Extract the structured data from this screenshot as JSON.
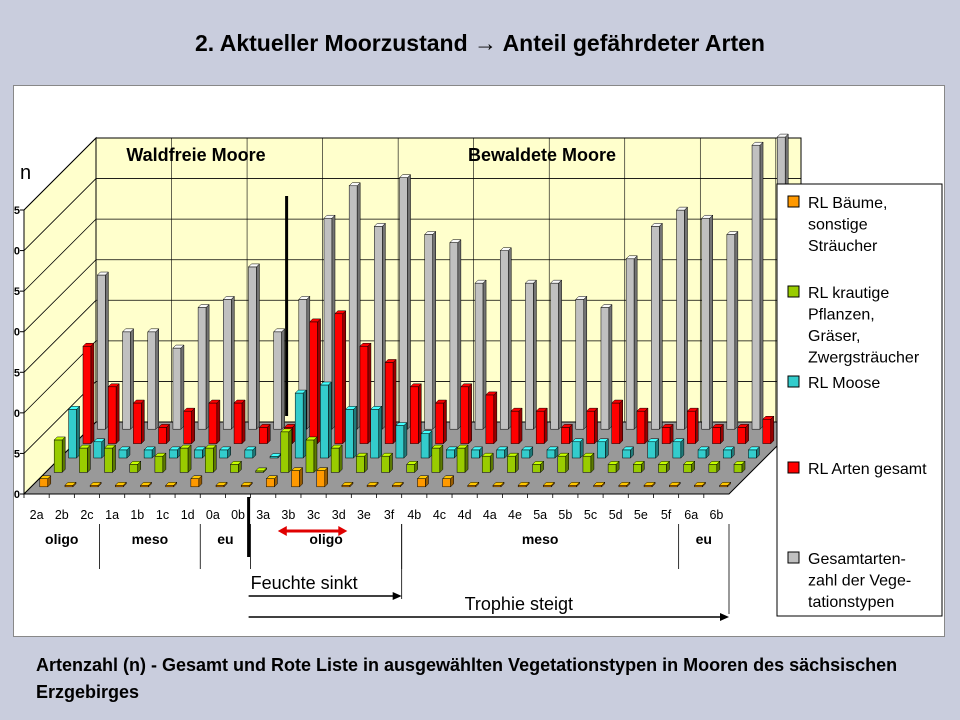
{
  "slide_title": "2. Aktueller Moorzustand → Anteil gefährdeter Arten",
  "caption": "Artenzahl (n) - Gesamt und Rote Liste in ausgewählten Vegetationstypen in Mooren des sächsischen Erzgebirges",
  "colors": {
    "rl_trees": "#ff9900",
    "rl_herbs": "#99cc00",
    "rl_mosses": "#33cccc",
    "rl_total": "#ff0000",
    "total": "#c0c0c0",
    "wall": "#ffffcc",
    "arrow_red": "#e00000"
  },
  "chart_data": {
    "type": "bar",
    "subtype": "3d-clustered-column",
    "ylabel": "n",
    "ylim": [
      0,
      35
    ],
    "yticks": [
      0,
      5,
      10,
      15,
      20,
      25,
      30,
      35
    ],
    "grid": true,
    "legend_position": "right",
    "group_headings": [
      "Waldfreie Moore",
      "Bewaldete Moore"
    ],
    "categories": [
      "2a",
      "2b",
      "2c",
      "1a",
      "1b",
      "1c",
      "1d",
      "0a",
      "0b",
      "3a",
      "3b",
      "3c",
      "3d",
      "3e",
      "3f",
      "4b",
      "4c",
      "4d",
      "4a",
      "4e",
      "5a",
      "5b",
      "5c",
      "5d",
      "5e",
      "5f",
      "6a",
      "6b"
    ],
    "trophy_groups": [
      {
        "label": "oligo",
        "from": "2a",
        "to": "2c"
      },
      {
        "label": "meso",
        "from": "1a",
        "to": "1d"
      },
      {
        "label": "eu",
        "from": "0a",
        "to": "0b"
      },
      {
        "label": "oligo",
        "from": "3a",
        "to": "3f"
      },
      {
        "label": "meso",
        "from": "4b",
        "to": "5f"
      },
      {
        "label": "eu",
        "from": "6a",
        "to": "6b"
      }
    ],
    "series": [
      {
        "name": "RL Bäume, sonstige Sträucher",
        "color": "#ff9900",
        "values": [
          1,
          0,
          0,
          0,
          0,
          0,
          1,
          0,
          0,
          1,
          2,
          2,
          0,
          0,
          0,
          1,
          1,
          0,
          0,
          0,
          0,
          0,
          0,
          0,
          0,
          0,
          0,
          0
        ]
      },
      {
        "name": "RL krautige Pflanzen, Gräser, Zwergsträucher",
        "color": "#99cc00",
        "values": [
          4,
          3,
          3,
          1,
          2,
          3,
          3,
          1,
          0,
          5,
          4,
          3,
          2,
          2,
          1,
          3,
          3,
          2,
          2,
          1,
          2,
          2,
          1,
          1,
          1,
          1,
          1,
          1
        ]
      },
      {
        "name": "RL Moose",
        "color": "#33cccc",
        "values": [
          6,
          2,
          1,
          1,
          1,
          1,
          1,
          1,
          0,
          8,
          9,
          6,
          6,
          4,
          3,
          1,
          1,
          1,
          1,
          1,
          2,
          2,
          1,
          2,
          2,
          1,
          1,
          1
        ]
      },
      {
        "name": "RL Arten gesamt",
        "color": "#ff0000",
        "values": [
          12,
          7,
          5,
          2,
          4,
          5,
          5,
          2,
          2,
          15,
          16,
          12,
          10,
          7,
          5,
          7,
          6,
          4,
          4,
          2,
          4,
          5,
          4,
          2,
          4,
          2,
          2,
          3
        ]
      },
      {
        "name": "Gesamtartenzahl der Vegetationstypen",
        "color": "#c0c0c0",
        "values": [
          19,
          12,
          12,
          10,
          15,
          16,
          20,
          12,
          16,
          26,
          30,
          25,
          31,
          24,
          23,
          18,
          22,
          18,
          18,
          16,
          15,
          21,
          25,
          27,
          26,
          24,
          35,
          36
        ]
      }
    ],
    "legend_entries": [
      [
        "RL Bäume,",
        "sonstige",
        "Sträucher"
      ],
      [
        "RL krautige",
        "Pflanzen,",
        "Gräser,",
        "Zwergsträucher"
      ],
      [
        "RL Moose"
      ],
      [
        "RL Arten gesamt"
      ],
      [
        "Gesamtarten-",
        "zahl der Vege-",
        "tationstypen"
      ]
    ],
    "annotations": {
      "moisture": "Feuchte sinkt",
      "trophy": "Trophie steigt"
    }
  }
}
